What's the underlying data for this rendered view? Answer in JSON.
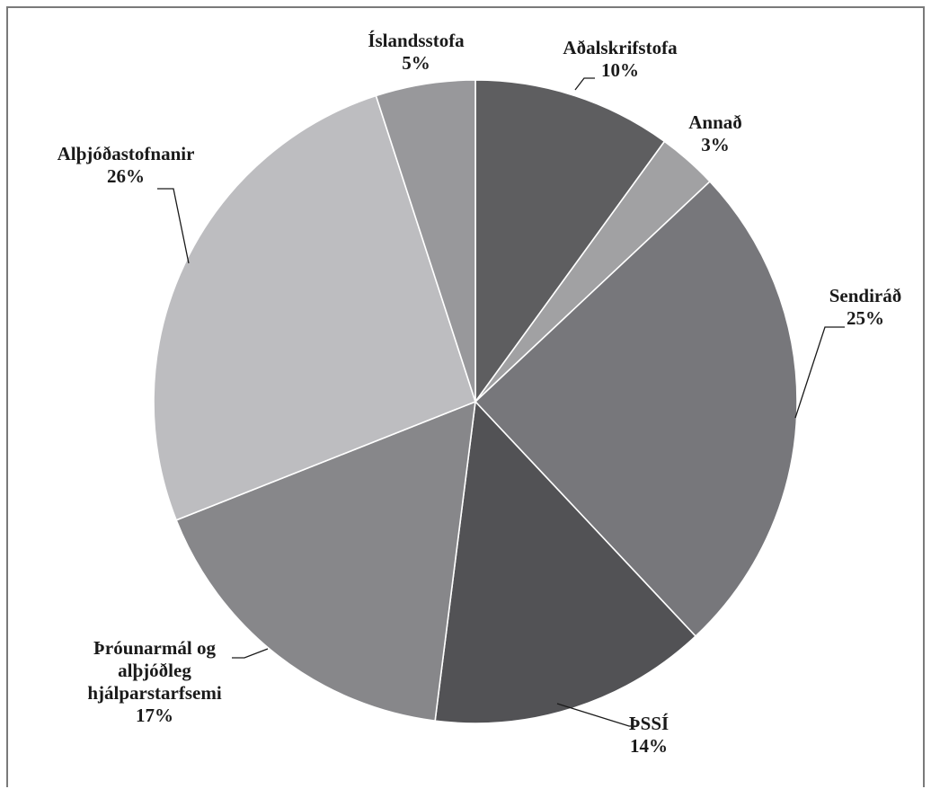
{
  "chart_data": {
    "type": "pie",
    "title": "",
    "start_angle_deg": 0,
    "direction": "clockwise",
    "slices": [
      {
        "name": "Aðalskrifstofa",
        "value_label": "10%",
        "value": 10,
        "color": "#5e5e60"
      },
      {
        "name": "Annað",
        "value_label": "3%",
        "value": 3,
        "color": "#a1a1a3"
      },
      {
        "name": "Sendiráð",
        "value_label": "25%",
        "value": 25,
        "color": "#77777b"
      },
      {
        "name": "ÞSSÍ",
        "value_label": "14%",
        "value": 14,
        "color": "#525255"
      },
      {
        "name": "Þróunarmál og alþjóðleg hjálparstarfsemi",
        "value_label": "17%",
        "value": 17,
        "color": "#87878a"
      },
      {
        "name": "Alþjóðastofnanir",
        "value_label": "26%",
        "value": 26,
        "color": "#bdbdc0"
      },
      {
        "name": "Íslandsstofa",
        "value_label": "5%",
        "value": 5,
        "color": "#98989b"
      }
    ],
    "legend": "none",
    "border_color": "#7a7a7a"
  }
}
